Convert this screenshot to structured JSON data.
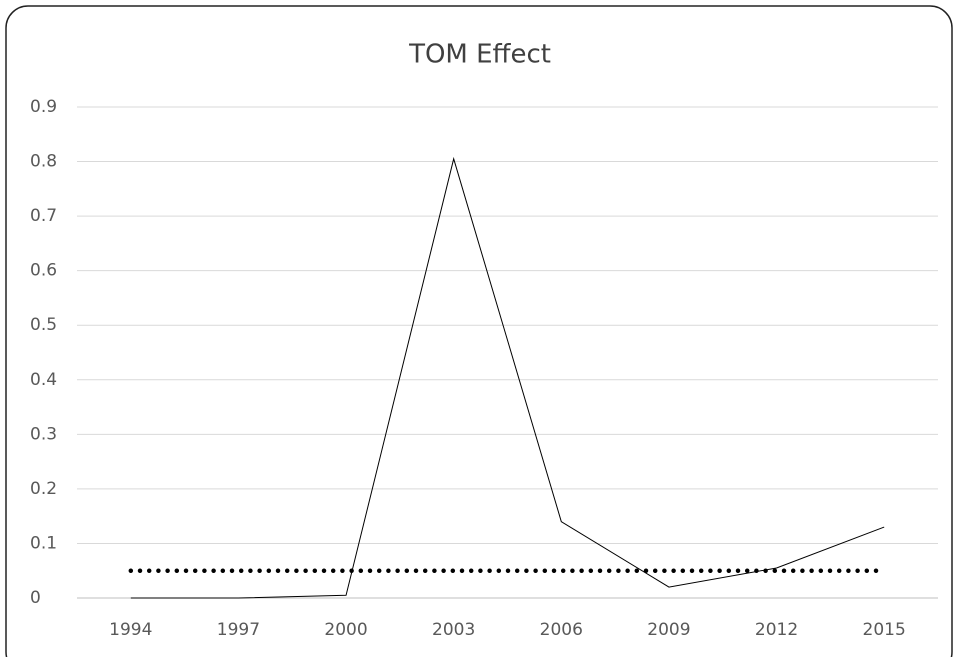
{
  "chart_data": {
    "type": "line",
    "title": "TOM Effect",
    "categories": [
      "1994",
      "1997",
      "2000",
      "2003",
      "2006",
      "2009",
      "2012",
      "2015"
    ],
    "series": [
      {
        "color": "#000000",
        "style": "solid",
        "values": [
          0,
          0,
          0.005,
          0.805,
          0.14,
          0.02,
          0.055,
          0.13
        ]
      },
      {
        "color": "#000000",
        "style": "dotted",
        "values": [
          0.05,
          0.05,
          0.05,
          0.05,
          0.05,
          0.05,
          0.05,
          0.05
        ]
      }
    ],
    "ylim": [
      0,
      0.9
    ],
    "yticks": [
      0,
      0.1,
      0.2,
      0.3,
      0.4,
      0.5,
      0.6,
      0.7,
      0.8,
      0.9
    ],
    "grid": true
  }
}
